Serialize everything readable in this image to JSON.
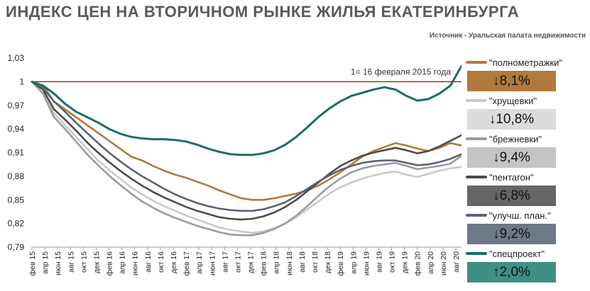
{
  "header": {
    "title": "ИНДЕКС ЦЕН НА ВТОРИЧНОМ РЫНКЕ ЖИЛЬЯ ЕКАТЕРИНБУРГА",
    "source": "Источник - Уральская палата недвижимости"
  },
  "chart_data": {
    "type": "line",
    "title": "ИНДЕКС ЦЕН НА ВТОРИЧНОМ РЫНКЕ ЖИЛЬЯ ЕКАТЕРИНБУРГА",
    "xlabel": "",
    "ylabel": "",
    "ylim": [
      0.79,
      1.03
    ],
    "y_ticks": [
      "1,03",
      "1",
      "0,97",
      "0,94",
      "0,91",
      "0,88",
      "0,85",
      "0,82",
      "0,79"
    ],
    "y_tick_values": [
      1.03,
      1.0,
      0.97,
      0.94,
      0.91,
      0.88,
      0.85,
      0.82,
      0.79
    ],
    "x_ticks": [
      "фев 15",
      "апр 15",
      "июн 15",
      "авг 15",
      "окт 15",
      "дек 15",
      "фев 16",
      "апр 16",
      "июн 16",
      "авг 16",
      "окт 16",
      "дек 16",
      "фев 17",
      "апр 17",
      "июн 17",
      "авг 17",
      "окт 17",
      "дек 17",
      "фев 18",
      "апр 18",
      "июн 18",
      "авг 18",
      "окт 18",
      "дек 18",
      "фев 19",
      "апр 19",
      "июн 19",
      "авг 19",
      "окт 19",
      "дек 19",
      "фев 20",
      "апр 20",
      "июн 20",
      "авг 20"
    ],
    "reference_line": {
      "value": 1.0,
      "label": "1= 16 февраля 2015 года",
      "color": "#a52a2a"
    },
    "grid": false,
    "legend": "right",
    "series": [
      {
        "name": "\"полнометражки\"",
        "change": "↓8,1%",
        "color": "#b07a3c",
        "box_color": "#b07a3c",
        "values": [
          1.0,
          0.995,
          0.975,
          0.965,
          0.955,
          0.945,
          0.935,
          0.925,
          0.915,
          0.905,
          0.9,
          0.893,
          0.887,
          0.882,
          0.878,
          0.873,
          0.868,
          0.862,
          0.857,
          0.852,
          0.85,
          0.85,
          0.852,
          0.855,
          0.858,
          0.862,
          0.868,
          0.876,
          0.885,
          0.895,
          0.905,
          0.912,
          0.917,
          0.922,
          0.919,
          0.915,
          0.912,
          0.916,
          0.922,
          0.919
        ]
      },
      {
        "name": "\"хрущевки\"",
        "change": "↓10,8%",
        "color": "#c9c9c9",
        "box_color": "#dcdcdc",
        "values": [
          1.0,
          0.99,
          0.96,
          0.945,
          0.93,
          0.915,
          0.9,
          0.888,
          0.877,
          0.866,
          0.857,
          0.849,
          0.842,
          0.836,
          0.83,
          0.825,
          0.82,
          0.815,
          0.812,
          0.81,
          0.808,
          0.81,
          0.814,
          0.82,
          0.828,
          0.838,
          0.848,
          0.858,
          0.866,
          0.872,
          0.877,
          0.881,
          0.884,
          0.886,
          0.882,
          0.879,
          0.883,
          0.887,
          0.89,
          0.892
        ]
      },
      {
        "name": "\"брежневки\"",
        "change": "↓9,4%",
        "color": "#9b9b9b",
        "box_color": "#c4c4c4",
        "values": [
          1.0,
          0.985,
          0.955,
          0.94,
          0.924,
          0.908,
          0.894,
          0.881,
          0.869,
          0.858,
          0.848,
          0.84,
          0.833,
          0.827,
          0.822,
          0.817,
          0.813,
          0.809,
          0.806,
          0.805,
          0.805,
          0.808,
          0.813,
          0.82,
          0.83,
          0.842,
          0.855,
          0.867,
          0.877,
          0.885,
          0.89,
          0.893,
          0.895,
          0.897,
          0.893,
          0.889,
          0.891,
          0.893,
          0.896,
          0.906
        ]
      },
      {
        "name": "\"пентагон\"",
        "change": "↓6,8%",
        "color": "#4c4c4c",
        "box_color": "#666666",
        "values": [
          1.0,
          0.99,
          0.965,
          0.952,
          0.938,
          0.923,
          0.91,
          0.898,
          0.887,
          0.877,
          0.868,
          0.86,
          0.853,
          0.847,
          0.841,
          0.836,
          0.832,
          0.828,
          0.826,
          0.825,
          0.826,
          0.829,
          0.834,
          0.841,
          0.85,
          0.861,
          0.872,
          0.883,
          0.893,
          0.9,
          0.906,
          0.91,
          0.913,
          0.916,
          0.913,
          0.909,
          0.912,
          0.918,
          0.925,
          0.932
        ]
      },
      {
        "name": "\"улучш. план.\"",
        "change": "↓9,2%",
        "color": "#5a6473",
        "box_color": "#6f7888",
        "values": [
          1.0,
          0.992,
          0.975,
          0.962,
          0.948,
          0.935,
          0.922,
          0.91,
          0.899,
          0.889,
          0.88,
          0.872,
          0.864,
          0.857,
          0.851,
          0.846,
          0.842,
          0.839,
          0.837,
          0.836,
          0.836,
          0.838,
          0.842,
          0.847,
          0.855,
          0.864,
          0.873,
          0.881,
          0.888,
          0.893,
          0.897,
          0.899,
          0.9,
          0.9,
          0.897,
          0.894,
          0.895,
          0.898,
          0.902,
          0.908
        ]
      },
      {
        "name": "\"спецпроект\"",
        "change": "↑2,0%",
        "color": "#1a6f66",
        "box_color": "#3f8f82",
        "values": [
          1.0,
          0.995,
          0.985,
          0.972,
          0.962,
          0.955,
          0.948,
          0.94,
          0.934,
          0.93,
          0.928,
          0.927,
          0.927,
          0.926,
          0.924,
          0.92,
          0.915,
          0.911,
          0.908,
          0.907,
          0.907,
          0.909,
          0.913,
          0.92,
          0.93,
          0.942,
          0.955,
          0.966,
          0.975,
          0.982,
          0.986,
          0.99,
          0.993,
          0.99,
          0.982,
          0.976,
          0.978,
          0.985,
          0.995,
          1.02
        ]
      }
    ]
  }
}
